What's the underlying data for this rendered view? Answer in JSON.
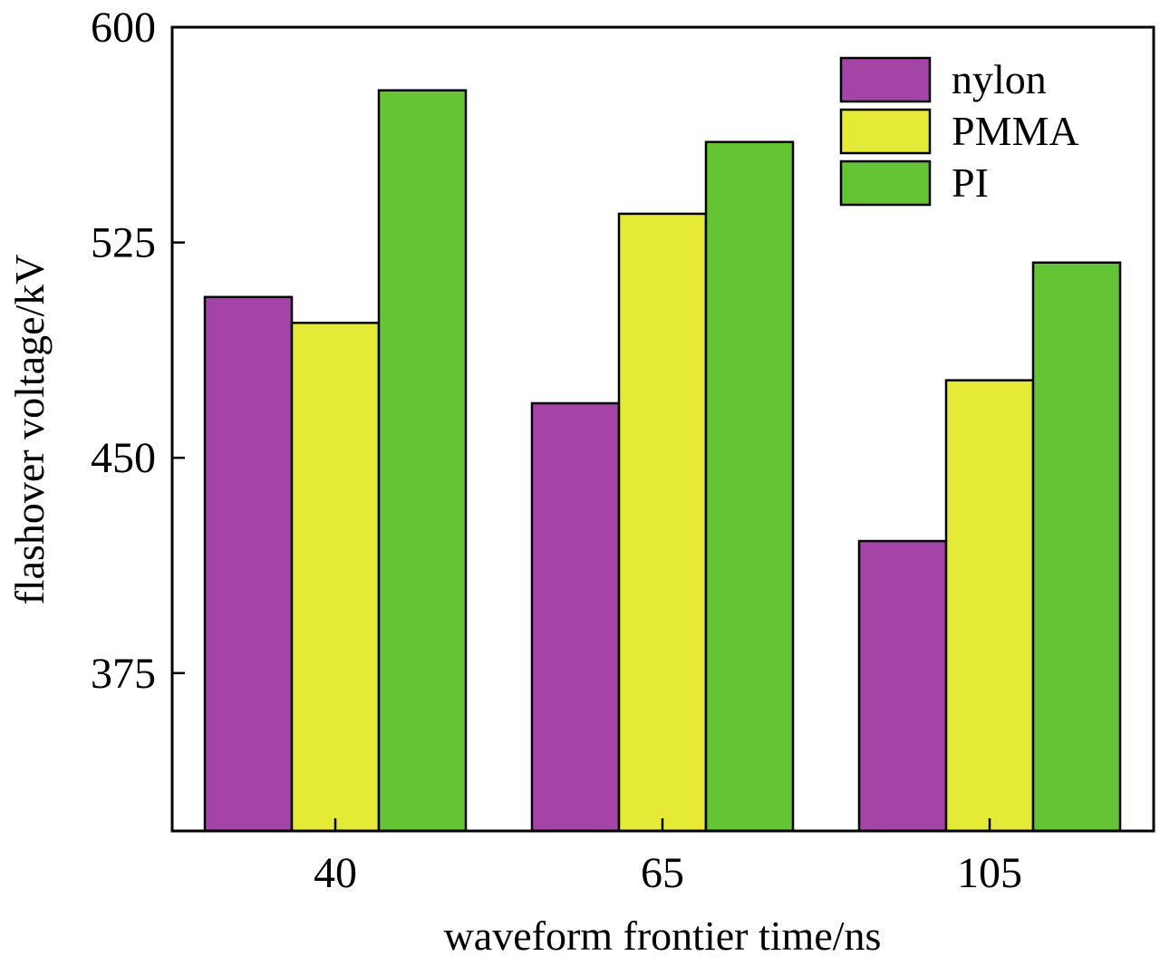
{
  "chart_data": {
    "type": "bar",
    "categories": [
      "40",
      "65",
      "105"
    ],
    "series": [
      {
        "name": "nylon",
        "values": [
          506,
          469,
          421
        ],
        "color": "#a444a7"
      },
      {
        "name": "PMMA",
        "values": [
          497,
          535,
          477
        ],
        "color": "#e4ea36"
      },
      {
        "name": "PI",
        "values": [
          578,
          560,
          518
        ],
        "color": "#65c434"
      }
    ],
    "title": "",
    "xlabel": "waveform frontier time/ns",
    "ylabel": "flashover voltage/kV",
    "ylim": [
      320,
      600
    ],
    "yticks": [
      375,
      450,
      525,
      600
    ],
    "grid": false,
    "legend_position": "top-right"
  }
}
